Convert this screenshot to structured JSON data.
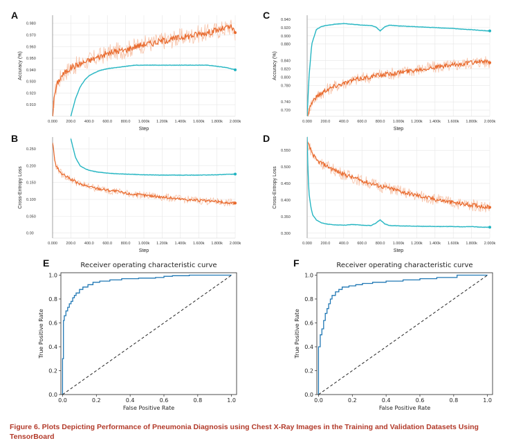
{
  "caption": "Figure 6. Plots Depicting Performance of Pneumonia Diagnosis using Chest X-Ray Images in the Training and Validation Datasets Using TensorBoard",
  "colors": {
    "train": "#e8692c",
    "train_light": "#f7c1a6",
    "val": "#1fb3c0",
    "val_light": "#a9e3e8",
    "roc": "#1f77b4"
  },
  "chart_data": [
    {
      "id": "A",
      "type": "line",
      "letter": "A",
      "xlabel": "Step",
      "ylabel": "Accuracy (%)",
      "xticks": [
        "0.000",
        "200.0",
        "400.0",
        "600.0",
        "800.0",
        "1.000k",
        "1.200k",
        "1.400k",
        "1.600k",
        "1.800k",
        "2.000k"
      ],
      "yticks": [
        "0.910",
        "0.920",
        "0.930",
        "0.940",
        "0.950",
        "0.960",
        "0.970",
        "0.980"
      ],
      "xlim": [
        0,
        2000
      ],
      "ylim": [
        0.9,
        0.987
      ],
      "series": [
        {
          "role": "train",
          "x": [
            0,
            20,
            50,
            100,
            200,
            300,
            400,
            500,
            600,
            700,
            800,
            900,
            1000,
            1100,
            1200,
            1300,
            1400,
            1500,
            1600,
            1700,
            1800,
            1900,
            1950,
            2000
          ],
          "y": [
            0.9,
            0.918,
            0.928,
            0.935,
            0.942,
            0.945,
            0.948,
            0.951,
            0.954,
            0.956,
            0.957,
            0.96,
            0.962,
            0.963,
            0.965,
            0.966,
            0.968,
            0.969,
            0.971,
            0.972,
            0.974,
            0.976,
            0.977,
            0.972
          ],
          "noise": 0.006
        },
        {
          "role": "val",
          "x": [
            200,
            250,
            300,
            350,
            400,
            500,
            600,
            700,
            800,
            900,
            1000,
            1200,
            1400,
            1600,
            1700,
            1800,
            1900,
            2000
          ],
          "y": [
            0.9,
            0.915,
            0.925,
            0.931,
            0.935,
            0.939,
            0.941,
            0.942,
            0.943,
            0.944,
            0.944,
            0.944,
            0.944,
            0.944,
            0.944,
            0.943,
            0.942,
            0.94
          ],
          "noise": 0.0
        }
      ]
    },
    {
      "id": "C",
      "type": "line",
      "letter": "C",
      "xlabel": "Step",
      "ylabel": "Accuracy (%)",
      "xticks": [
        "0.000",
        "200.0",
        "400.0",
        "600.0",
        "800.0",
        "1.000k",
        "1.200k",
        "1.400k",
        "1.600k",
        "1.800k",
        "2.000k"
      ],
      "yticks": [
        "0.720",
        "0.740",
        "0.780",
        "0.800",
        "0.820",
        "0.840",
        "0.880",
        "0.900",
        "0.920",
        "0.940"
      ],
      "xlim": [
        0,
        2000
      ],
      "ylim": [
        0.705,
        0.95
      ],
      "series": [
        {
          "role": "train",
          "x": [
            0,
            30,
            60,
            100,
            200,
            300,
            400,
            500,
            600,
            700,
            800,
            900,
            1000,
            1100,
            1200,
            1300,
            1400,
            1500,
            1600,
            1700,
            1800,
            1900,
            2000
          ],
          "y": [
            0.705,
            0.728,
            0.742,
            0.752,
            0.768,
            0.778,
            0.785,
            0.792,
            0.797,
            0.801,
            0.805,
            0.808,
            0.811,
            0.814,
            0.818,
            0.821,
            0.824,
            0.826,
            0.829,
            0.832,
            0.835,
            0.838,
            0.835
          ],
          "noise": 0.012
        },
        {
          "role": "val",
          "x": [
            0,
            20,
            50,
            100,
            150,
            200,
            300,
            400,
            500,
            600,
            700,
            750,
            800,
            850,
            900,
            1000,
            1200,
            1400,
            1600,
            1700,
            1800,
            1900,
            2000
          ],
          "y": [
            0.705,
            0.8,
            0.88,
            0.915,
            0.922,
            0.925,
            0.928,
            0.93,
            0.928,
            0.926,
            0.925,
            0.922,
            0.912,
            0.922,
            0.926,
            0.924,
            0.922,
            0.92,
            0.918,
            0.916,
            0.915,
            0.913,
            0.912
          ],
          "noise": 0.0
        }
      ]
    },
    {
      "id": "B",
      "type": "line",
      "letter": "B",
      "xlabel": "Step",
      "ylabel": "Cross-Entropy Loss",
      "xticks": [
        "0.000",
        "200.0",
        "400.0",
        "600.0",
        "800.0",
        "1.000k",
        "1.200k",
        "1.400k",
        "1.600k",
        "1.800k",
        "2.000k"
      ],
      "yticks": [
        "0.00",
        "0.050",
        "0.100",
        "0.150",
        "0.200",
        "0.250"
      ],
      "xlim": [
        0,
        2000
      ],
      "ylim": [
        -0.015,
        0.285
      ],
      "series": [
        {
          "role": "train",
          "x": [
            0,
            30,
            60,
            100,
            200,
            300,
            400,
            500,
            600,
            700,
            800,
            900,
            1000,
            1100,
            1200,
            1300,
            1400,
            1500,
            1600,
            1700,
            1800,
            1900,
            2000
          ],
          "y": [
            0.27,
            0.205,
            0.19,
            0.175,
            0.16,
            0.145,
            0.138,
            0.132,
            0.128,
            0.124,
            0.118,
            0.115,
            0.112,
            0.11,
            0.107,
            0.104,
            0.101,
            0.099,
            0.097,
            0.095,
            0.093,
            0.09,
            0.089
          ],
          "noise": 0.009
        },
        {
          "role": "val",
          "x": [
            200,
            250,
            300,
            350,
            400,
            500,
            600,
            700,
            800,
            900,
            1000,
            1200,
            1400,
            1600,
            1800,
            2000
          ],
          "y": [
            0.28,
            0.225,
            0.2,
            0.192,
            0.186,
            0.181,
            0.178,
            0.176,
            0.175,
            0.174,
            0.173,
            0.172,
            0.172,
            0.172,
            0.173,
            0.175
          ],
          "noise": 0.0
        }
      ]
    },
    {
      "id": "D",
      "type": "line",
      "letter": "D",
      "xlabel": "Step",
      "ylabel": "Cross-Entropy Loss",
      "xticks": [
        "0.000",
        "200.0",
        "400.0",
        "600.0",
        "800.0",
        "1.000k",
        "1.200k",
        "1.400k",
        "1.600k",
        "1.800k",
        "2.000k"
      ],
      "yticks": [
        "0.300",
        "0.350",
        "0.400",
        "0.450",
        "0.500",
        "0.550"
      ],
      "xlim": [
        0,
        2000
      ],
      "ylim": [
        0.285,
        0.59
      ],
      "series": [
        {
          "role": "train",
          "x": [
            0,
            50,
            100,
            200,
            300,
            400,
            500,
            600,
            700,
            800,
            900,
            1000,
            1100,
            1200,
            1300,
            1400,
            1500,
            1600,
            1700,
            1800,
            1900,
            2000
          ],
          "y": [
            0.575,
            0.545,
            0.52,
            0.505,
            0.49,
            0.478,
            0.468,
            0.458,
            0.45,
            0.442,
            0.435,
            0.428,
            0.42,
            0.414,
            0.408,
            0.402,
            0.397,
            0.392,
            0.388,
            0.385,
            0.382,
            0.378
          ],
          "noise": 0.014
        },
        {
          "role": "val",
          "x": [
            0,
            10,
            20,
            40,
            60,
            100,
            150,
            200,
            300,
            400,
            500,
            600,
            700,
            750,
            800,
            850,
            900,
            1000,
            1200,
            1400,
            1600,
            1700,
            1800,
            1900,
            2000
          ],
          "y": [
            0.59,
            0.48,
            0.42,
            0.38,
            0.355,
            0.34,
            0.332,
            0.328,
            0.325,
            0.324,
            0.326,
            0.324,
            0.323,
            0.33,
            0.34,
            0.328,
            0.323,
            0.322,
            0.321,
            0.32,
            0.32,
            0.319,
            0.32,
            0.318,
            0.318
          ],
          "noise": 0.0
        }
      ]
    },
    {
      "id": "E",
      "type": "line",
      "letter": "E",
      "title": "Receiver operating characteristic curve",
      "xlabel": "False Positive Rate",
      "ylabel": "True Positive Rate",
      "xticks": [
        "0.0",
        "0.2",
        "0.4",
        "0.6",
        "0.8",
        "1.0"
      ],
      "yticks": [
        "0.0",
        "0.2",
        "0.4",
        "0.6",
        "0.8",
        "1.0"
      ],
      "xlim": [
        -0.01,
        1.03
      ],
      "ylim": [
        0,
        1.02
      ],
      "series": [
        {
          "role": "roc",
          "x": [
            0,
            0,
            0.005,
            0.005,
            0.01,
            0.01,
            0.02,
            0.02,
            0.03,
            0.03,
            0.04,
            0.04,
            0.05,
            0.05,
            0.06,
            0.06,
            0.07,
            0.07,
            0.08,
            0.08,
            0.1,
            0.1,
            0.12,
            0.12,
            0.15,
            0.15,
            0.18,
            0.18,
            0.22,
            0.22,
            0.28,
            0.28,
            0.35,
            0.35,
            0.45,
            0.45,
            0.55,
            0.55,
            0.6,
            0.6,
            0.65,
            0.65,
            0.75,
            0.75,
            1.0
          ],
          "y": [
            0,
            0.3,
            0.3,
            0.62,
            0.62,
            0.66,
            0.66,
            0.7,
            0.7,
            0.73,
            0.73,
            0.76,
            0.76,
            0.78,
            0.78,
            0.81,
            0.81,
            0.83,
            0.83,
            0.85,
            0.85,
            0.88,
            0.88,
            0.9,
            0.9,
            0.92,
            0.92,
            0.94,
            0.94,
            0.95,
            0.95,
            0.96,
            0.96,
            0.97,
            0.97,
            0.975,
            0.975,
            0.98,
            0.98,
            0.99,
            0.99,
            0.995,
            0.995,
            1.0,
            1.0
          ]
        },
        {
          "role": "chance",
          "x": [
            0,
            1
          ],
          "y": [
            0,
            1
          ]
        }
      ]
    },
    {
      "id": "F",
      "type": "line",
      "letter": "F",
      "title": "Receiver operating characteristic curve",
      "xlabel": "False Positive Rate",
      "ylabel": "True Positive Rate",
      "xticks": [
        "0.0",
        "0.2",
        "0.4",
        "0.6",
        "0.8",
        "1.0"
      ],
      "yticks": [
        "0.0",
        "0.2",
        "0.4",
        "0.6",
        "0.8",
        "1.0"
      ],
      "xlim": [
        -0.01,
        1.03
      ],
      "ylim": [
        0,
        1.02
      ],
      "series": [
        {
          "role": "roc",
          "x": [
            0,
            0,
            0.01,
            0.01,
            0.02,
            0.02,
            0.03,
            0.03,
            0.04,
            0.04,
            0.05,
            0.05,
            0.06,
            0.06,
            0.07,
            0.07,
            0.08,
            0.08,
            0.1,
            0.1,
            0.12,
            0.12,
            0.14,
            0.14,
            0.18,
            0.18,
            0.22,
            0.22,
            0.26,
            0.26,
            0.32,
            0.32,
            0.4,
            0.4,
            0.5,
            0.5,
            0.6,
            0.6,
            0.7,
            0.7,
            0.82,
            0.82,
            1.0
          ],
          "y": [
            0,
            0.4,
            0.4,
            0.5,
            0.5,
            0.55,
            0.55,
            0.62,
            0.62,
            0.68,
            0.68,
            0.72,
            0.72,
            0.76,
            0.76,
            0.8,
            0.8,
            0.83,
            0.83,
            0.86,
            0.86,
            0.88,
            0.88,
            0.9,
            0.9,
            0.91,
            0.91,
            0.92,
            0.92,
            0.93,
            0.93,
            0.94,
            0.94,
            0.95,
            0.95,
            0.96,
            0.96,
            0.97,
            0.97,
            0.98,
            0.98,
            1.0,
            1.0
          ]
        },
        {
          "role": "chance",
          "x": [
            0,
            1
          ],
          "y": [
            0,
            1
          ]
        }
      ]
    }
  ]
}
